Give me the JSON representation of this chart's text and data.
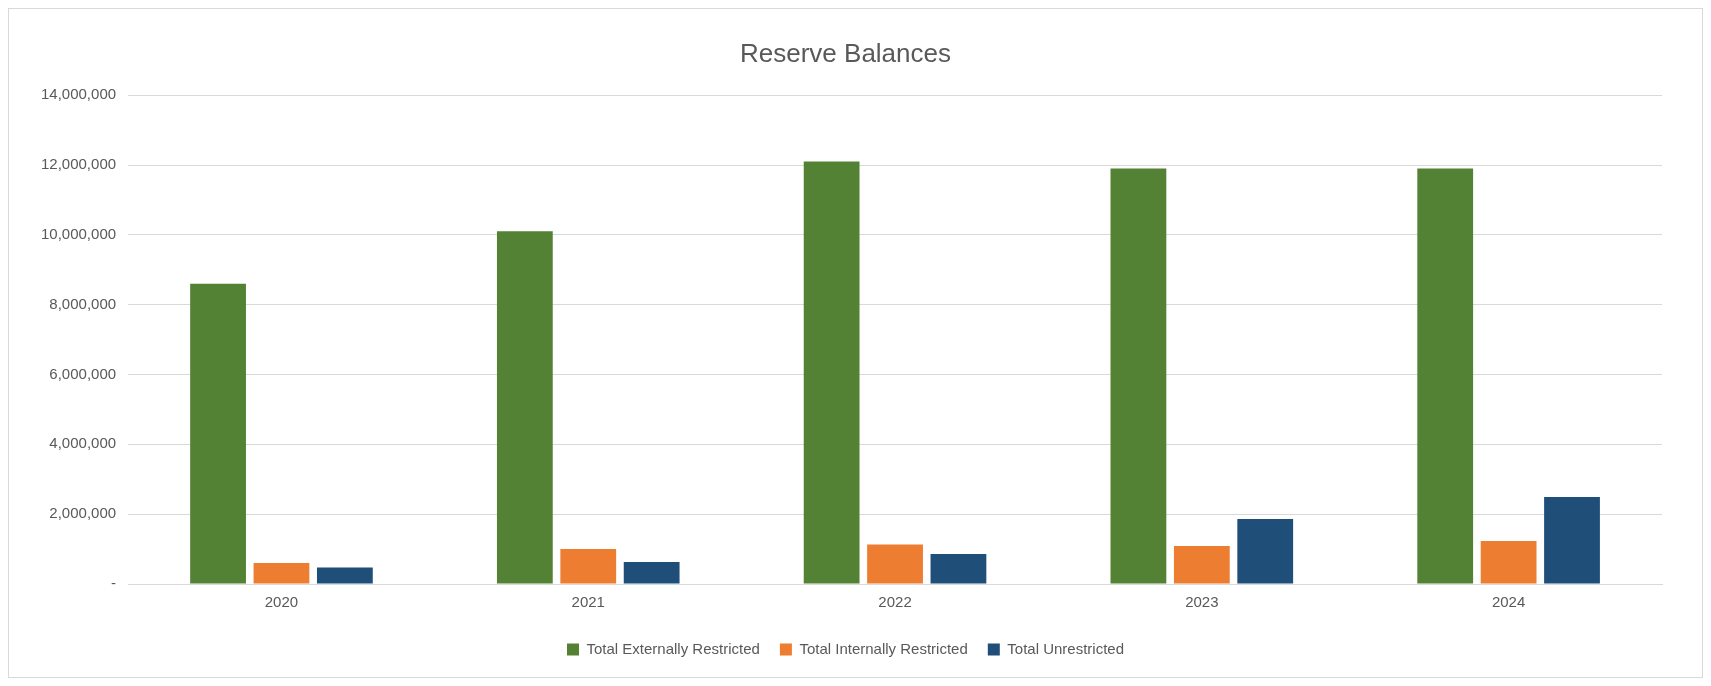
{
  "chart_data": {
    "type": "bar",
    "title": "Reserve Balances",
    "categories": [
      "2020",
      "2021",
      "2022",
      "2023",
      "2024"
    ],
    "series": [
      {
        "name": "Total Externally Restricted",
        "color": "#548235",
        "values": [
          8600000,
          10100000,
          12100000,
          11900000,
          11900000
        ]
      },
      {
        "name": "Total Internally Restricted",
        "color": "#ed7d31",
        "values": [
          600000,
          1000000,
          1130000,
          1090000,
          1230000
        ]
      },
      {
        "name": "Total Unrestricted",
        "color": "#1f4e79",
        "values": [
          470000,
          630000,
          860000,
          1860000,
          2490000
        ]
      }
    ],
    "ylim": [
      0,
      14000000
    ],
    "yticks": [
      {
        "value": 0,
        "label": "-"
      },
      {
        "value": 2000000,
        "label": "2,000,000"
      },
      {
        "value": 4000000,
        "label": "4,000,000"
      },
      {
        "value": 6000000,
        "label": "6,000,000"
      },
      {
        "value": 8000000,
        "label": "8,000,000"
      },
      {
        "value": 10000000,
        "label": "10,000,000"
      },
      {
        "value": 12000000,
        "label": "12,000,000"
      },
      {
        "value": 14000000,
        "label": "14,000,000"
      }
    ],
    "grid": "y",
    "legend": "bottom"
  }
}
